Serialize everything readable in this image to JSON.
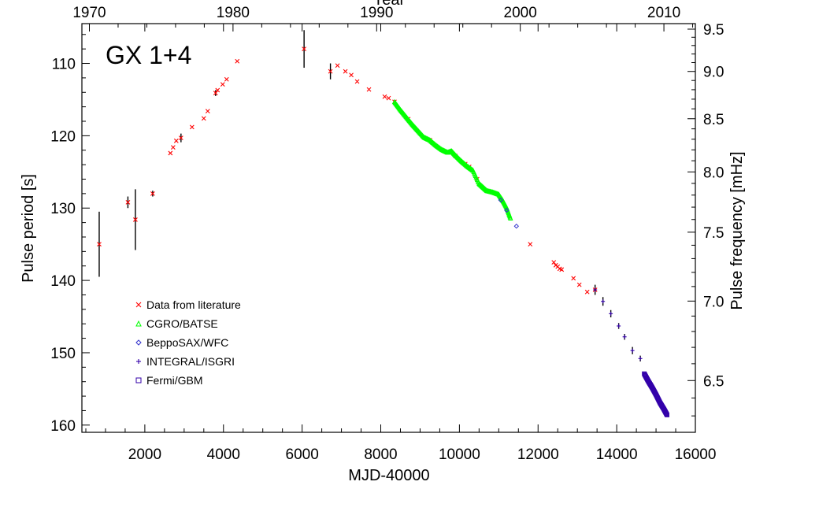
{
  "chart_data": {
    "type": "scatter",
    "label": "GX 1+4",
    "xlabel": "MJD-40000",
    "ylabel": "Pulse period [s]",
    "top_xlabel": "Year",
    "right_ylabel": "Pulse frequency [mHz]",
    "xlim": [
      400,
      16000
    ],
    "ylim": [
      161,
      104.5
    ],
    "x_ticks": [
      "2000",
      "4000",
      "6000",
      "8000",
      "10000",
      "12000",
      "14000",
      "16000"
    ],
    "y_ticks": [
      "110",
      "120",
      "130",
      "140",
      "150",
      "160"
    ],
    "top_ticks": [
      "1970",
      "1980",
      "1990",
      "2000",
      "2010"
    ],
    "right_ticks": [
      "9.5",
      "9.0",
      "8.5",
      "8.0",
      "7.5",
      "7.0",
      "6.5"
    ],
    "legend_position": "lower-left",
    "series": [
      {
        "name": "Data from literature",
        "marker": "x",
        "color": "#ff0000",
        "points": [
          {
            "x": 840,
            "y": 135.0,
            "err": 4.5
          },
          {
            "x": 1570,
            "y": 129.2,
            "err": 0.8
          },
          {
            "x": 1760,
            "y": 131.6,
            "err": 4.2
          },
          {
            "x": 2200,
            "y": 128.0,
            "err": 0.4
          },
          {
            "x": 2650,
            "y": 122.4
          },
          {
            "x": 2720,
            "y": 121.6
          },
          {
            "x": 2800,
            "y": 120.7
          },
          {
            "x": 2920,
            "y": 120.3,
            "err": 0.6
          },
          {
            "x": 3200,
            "y": 118.8
          },
          {
            "x": 3500,
            "y": 117.6
          },
          {
            "x": 3600,
            "y": 116.6
          },
          {
            "x": 3800,
            "y": 114.1,
            "err": 0.4
          },
          {
            "x": 3850,
            "y": 113.7
          },
          {
            "x": 3980,
            "y": 112.9
          },
          {
            "x": 4080,
            "y": 112.2
          },
          {
            "x": 4350,
            "y": 109.7
          },
          {
            "x": 6050,
            "y": 108.0,
            "err": 2.6
          },
          {
            "x": 6720,
            "y": 111.1,
            "err": 1.1
          },
          {
            "x": 6900,
            "y": 110.3
          },
          {
            "x": 7100,
            "y": 111.1
          },
          {
            "x": 7250,
            "y": 111.6
          },
          {
            "x": 7400,
            "y": 112.5
          },
          {
            "x": 7700,
            "y": 113.6
          },
          {
            "x": 8100,
            "y": 114.6
          },
          {
            "x": 8200,
            "y": 114.8
          },
          {
            "x": 8350,
            "y": 115.3
          },
          {
            "x": 8700,
            "y": 117.7
          },
          {
            "x": 9250,
            "y": 120.6
          },
          {
            "x": 9900,
            "y": 122.8
          },
          {
            "x": 10150,
            "y": 123.9
          },
          {
            "x": 10250,
            "y": 124.3
          },
          {
            "x": 10450,
            "y": 126.0
          },
          {
            "x": 11800,
            "y": 135.0
          },
          {
            "x": 12400,
            "y": 137.5
          },
          {
            "x": 12450,
            "y": 137.9
          },
          {
            "x": 12500,
            "y": 138.1
          },
          {
            "x": 12550,
            "y": 138.4
          },
          {
            "x": 12600,
            "y": 138.5
          },
          {
            "x": 12900,
            "y": 139.7
          },
          {
            "x": 13050,
            "y": 140.6
          },
          {
            "x": 13250,
            "y": 141.6
          },
          {
            "x": 13450,
            "y": 141.3
          }
        ]
      },
      {
        "name": "CGRO/BATSE",
        "marker": "triangle",
        "color": "#00ff00",
        "segments": [
          [
            8350,
            115.3
          ],
          [
            8500,
            116.4
          ],
          [
            8650,
            117.4
          ],
          [
            8800,
            118.4
          ],
          [
            8950,
            119.3
          ],
          [
            9100,
            120.2
          ],
          [
            9250,
            120.6
          ],
          [
            9400,
            121.3
          ],
          [
            9550,
            121.9
          ],
          [
            9700,
            122.3
          ],
          [
            9800,
            122.1
          ],
          [
            9900,
            122.7
          ],
          [
            10050,
            123.5
          ],
          [
            10200,
            124.2
          ],
          [
            10350,
            124.8
          ],
          [
            10500,
            126.6
          ],
          [
            10600,
            127.1
          ],
          [
            10700,
            127.6
          ],
          [
            10850,
            127.8
          ],
          [
            11000,
            128.1
          ],
          [
            11100,
            128.9
          ],
          [
            11200,
            129.9
          ],
          [
            11300,
            131.4
          ]
        ]
      },
      {
        "name": "BeppoSAX/WFC",
        "marker": "diamond",
        "color": "#3333cc",
        "points": [
          {
            "x": 11050,
            "y": 128.9
          },
          {
            "x": 11200,
            "y": 130.3
          },
          {
            "x": 11450,
            "y": 132.5
          }
        ]
      },
      {
        "name": "INTEGRAL/ISGRI",
        "marker": "plus",
        "color": "#3300aa",
        "points": [
          {
            "x": 13450,
            "y": 141.3,
            "err": 0.7
          },
          {
            "x": 13650,
            "y": 142.9,
            "err": 0.6
          },
          {
            "x": 13850,
            "y": 144.6,
            "err": 0.5
          },
          {
            "x": 14050,
            "y": 146.3,
            "err": 0.4
          },
          {
            "x": 14200,
            "y": 147.8,
            "err": 0.4
          },
          {
            "x": 14400,
            "y": 149.7,
            "err": 0.5
          },
          {
            "x": 14600,
            "y": 150.8,
            "err": 0.4
          }
        ]
      },
      {
        "name": "Fermi/GBM",
        "marker": "square",
        "color": "#3300aa",
        "segments": [
          [
            14700,
            152.9
          ],
          [
            14800,
            153.9
          ],
          [
            14900,
            154.8
          ],
          [
            15000,
            155.8
          ],
          [
            15100,
            156.9
          ],
          [
            15200,
            157.8
          ],
          [
            15280,
            158.6
          ]
        ]
      }
    ]
  }
}
